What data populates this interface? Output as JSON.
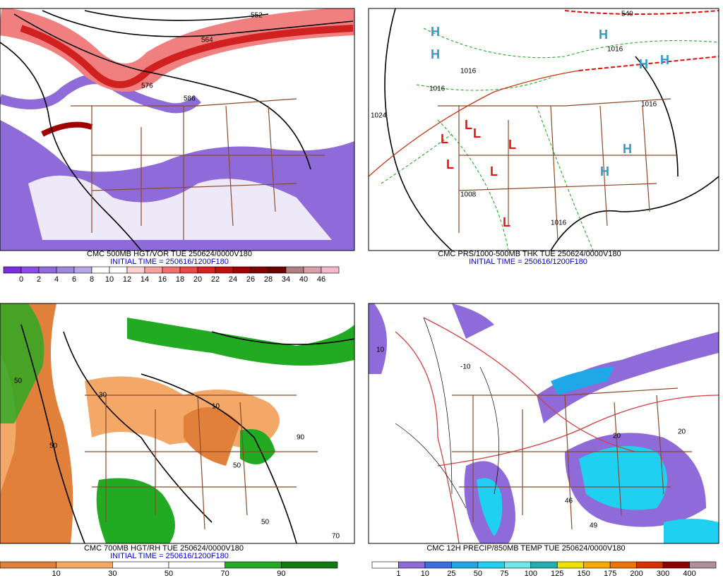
{
  "panels": [
    {
      "caption": "CMC 500MB HGT/VOR TUE 250624/0000V180",
      "initial_time": "INITIAL TIME = 250616/1200F180",
      "map_labels": [
        "552",
        "564",
        "576",
        "586"
      ],
      "scale": {
        "labels": [
          0,
          2,
          4,
          6,
          8,
          10,
          12,
          14,
          16,
          18,
          20,
          22,
          24,
          26,
          28,
          34,
          40,
          46
        ],
        "colors": [
          "#7b2ee0",
          "#8a4ee6",
          "#8e6bd8",
          "#9d86dc",
          "#b6a6e6",
          "#ffffff",
          "#ffffff",
          "#fbd0d0",
          "#f7a0a0",
          "#f07070",
          "#e84848",
          "#d82020",
          "#c01010",
          "#a00000",
          "#800000",
          "#6a0000",
          "#b08080",
          "#d8a0a8",
          "#f4b8c8"
        ]
      }
    },
    {
      "caption": "CMC PRS/1000-500MB THK TUE 250624/0000V180",
      "initial_time": "INITIAL TIME = 250616/1200F180",
      "map_labels": [
        "540",
        "1016",
        "1016",
        "1016",
        "1024",
        "1008",
        "1016",
        "1016",
        "H",
        "H",
        "H",
        "H",
        "H",
        "H",
        "H",
        "L",
        "L",
        "L",
        "L",
        "L",
        "L",
        "L"
      ]
    },
    {
      "caption": "CMC 700MB HGT/RH TUE 250624/0000V180",
      "initial_time": "INITIAL TIME = 250616/1200F180",
      "map_labels": [
        "50",
        "50",
        "30",
        "10",
        "50",
        "90",
        "50",
        "70"
      ],
      "scale": {
        "labels": [
          10,
          30,
          50,
          70,
          90
        ],
        "colors": [
          "#e0803a",
          "#f4a868",
          "#ffffff",
          "#ffffff",
          "#22aa22",
          "#127a12"
        ]
      }
    },
    {
      "caption": "CMC 12H PRECIP/850MB TEMP TUE 250624/0000V180",
      "initial_time": "INITIAL TIME = 250616/1200F180",
      "map_labels": [
        "10",
        "20",
        "20",
        "-10",
        "49",
        "46"
      ],
      "scale": {
        "labels": [
          1,
          10,
          25,
          50,
          75,
          100,
          125,
          150,
          175,
          200,
          300,
          400
        ],
        "colors": [
          "#ffffff",
          "#8e6bd8",
          "#3c6ee0",
          "#1ea8e8",
          "#20d0f0",
          "#70e8e8",
          "#20b0b0",
          "#f0e000",
          "#f8a800",
          "#f07000",
          "#d83000",
          "#900000",
          "#b09098"
        ]
      }
    }
  ]
}
